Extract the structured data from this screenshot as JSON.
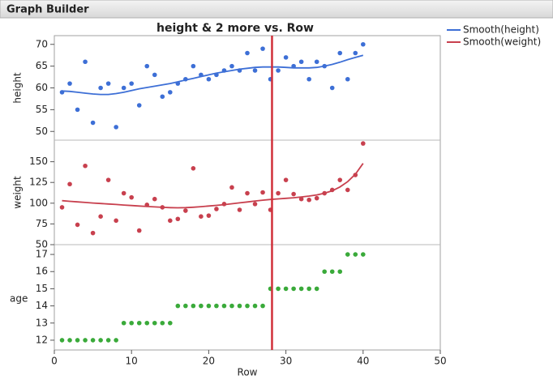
{
  "header": {
    "title": "Graph Builder"
  },
  "chart_data": {
    "type": "scatter",
    "title": "height & 2 more vs. Row",
    "xlabel": "Row",
    "xlim": [
      0,
      50
    ],
    "xticks": [
      0,
      10,
      20,
      30,
      40,
      50
    ],
    "vline": 28.2,
    "vline_color": "#d0303a",
    "x": [
      1,
      2,
      3,
      4,
      5,
      6,
      7,
      8,
      9,
      10,
      11,
      12,
      13,
      14,
      15,
      16,
      17,
      18,
      19,
      20,
      21,
      22,
      23,
      24,
      25,
      26,
      27,
      28,
      29,
      30,
      31,
      32,
      33,
      34,
      35,
      36,
      37,
      38,
      39,
      40
    ],
    "panels": [
      {
        "ylabel": "height",
        "ylim": [
          48,
          72
        ],
        "yticks": [
          50,
          55,
          60,
          65,
          70
        ],
        "color": "#3d6fd6",
        "values": [
          59,
          61,
          55,
          66,
          52,
          60,
          61,
          51,
          60,
          61,
          56,
          65,
          63,
          58,
          59,
          61,
          62,
          65,
          63,
          62,
          63,
          64,
          65,
          64,
          68,
          64,
          69,
          62,
          64,
          67,
          65,
          66,
          62,
          66,
          65,
          60,
          68,
          62,
          68,
          70
        ],
        "smooth": {
          "name": "Smooth(height)",
          "color": "#3d6fd6",
          "values": [
            59.3,
            59.2,
            59.0,
            58.8,
            58.6,
            58.5,
            58.5,
            58.7,
            59.0,
            59.4,
            59.8,
            60.1,
            60.4,
            60.7,
            61.0,
            61.4,
            61.8,
            62.2,
            62.6,
            63.0,
            63.4,
            63.7,
            64.0,
            64.3,
            64.5,
            64.7,
            64.8,
            64.8,
            64.8,
            64.7,
            64.6,
            64.6,
            64.6,
            64.7,
            65.0,
            65.4,
            65.9,
            66.5,
            67.0,
            67.5
          ]
        }
      },
      {
        "ylabel": "weight",
        "ylim": [
          50,
          176
        ],
        "yticks": [
          50,
          75,
          100,
          125,
          150
        ],
        "color": "#c8404e",
        "values": [
          95,
          123,
          74,
          145,
          64,
          84,
          128,
          79,
          112,
          107,
          67,
          98,
          105,
          95,
          79,
          81,
          91,
          142,
          84,
          85,
          93,
          99,
          119,
          92,
          112,
          99,
          113,
          92,
          112,
          128,
          111,
          105,
          104,
          106,
          112,
          116,
          128,
          116,
          134,
          172
        ],
        "smooth": {
          "name": "Smooth(weight)",
          "color": "#c8404e",
          "values": [
            103,
            102.3,
            101.6,
            100.9,
            100.2,
            99.6,
            99,
            98.4,
            97.8,
            97.2,
            96.6,
            96,
            95.5,
            95,
            94.6,
            94.4,
            94.6,
            95.1,
            95.8,
            96.6,
            97.4,
            98.3,
            99.3,
            100.4,
            101.5,
            102.6,
            103.6,
            104.5,
            105.2,
            105.9,
            106.6,
            107.5,
            108.6,
            110,
            112,
            115,
            119.5,
            126,
            135,
            148
          ]
        }
      },
      {
        "ylabel": "age",
        "ylim": [
          11.43,
          17.57
        ],
        "yticks": [
          12,
          13,
          14,
          15,
          16,
          17
        ],
        "color": "#3aaa3a",
        "values": [
          12,
          12,
          12,
          12,
          12,
          12,
          12,
          12,
          13,
          13,
          13,
          13,
          13,
          13,
          13,
          14,
          14,
          14,
          14,
          14,
          14,
          14,
          14,
          14,
          14,
          14,
          14,
          15,
          15,
          15,
          15,
          15,
          15,
          15,
          16,
          16,
          16,
          17,
          17,
          17
        ]
      }
    ]
  }
}
